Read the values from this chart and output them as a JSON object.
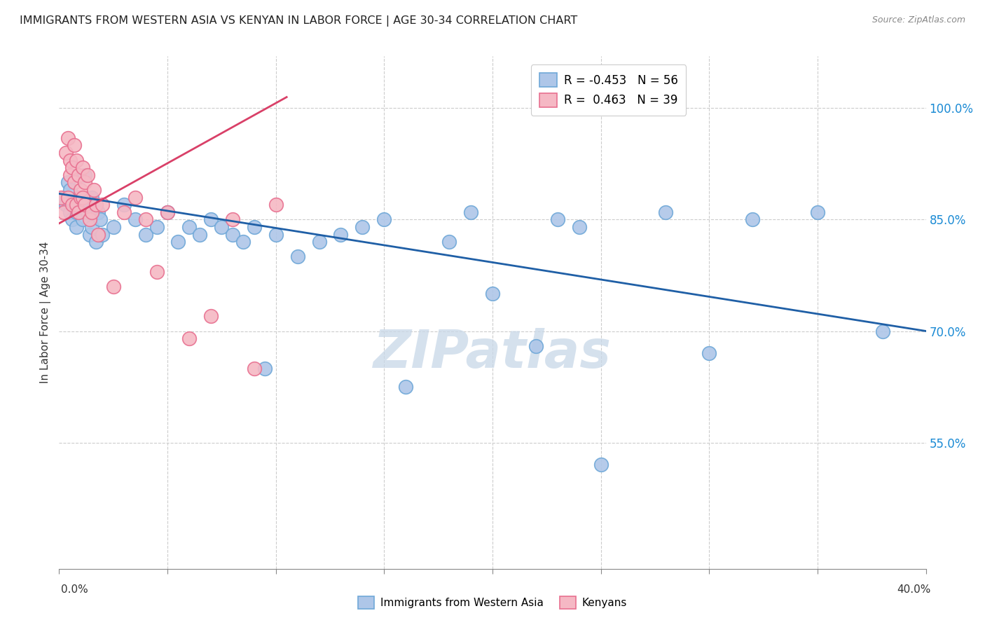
{
  "title": "IMMIGRANTS FROM WESTERN ASIA VS KENYAN IN LABOR FORCE | AGE 30-34 CORRELATION CHART",
  "source": "Source: ZipAtlas.com",
  "ylabel": "In Labor Force | Age 30-34",
  "yticks": [
    100.0,
    85.0,
    70.0,
    55.0
  ],
  "ytick_labels": [
    "100.0%",
    "85.0%",
    "70.0%",
    "55.0%"
  ],
  "ylim": [
    38.0,
    107.0
  ],
  "xlim": [
    0.0,
    40.0
  ],
  "legend_blue_r": "-0.453",
  "legend_blue_n": "56",
  "legend_pink_r": "0.463",
  "legend_pink_n": "39",
  "legend_x1": "Immigrants from Western Asia",
  "legend_x2": "Kenyans",
  "blue_color": "#aec6e8",
  "blue_edge": "#6fa8d8",
  "blue_line": "#1f5fa6",
  "pink_color": "#f5b8c4",
  "pink_edge": "#e87090",
  "pink_line": "#d94068",
  "watermark": "ZIPatlas",
  "watermark_color": "#c8d8e8",
  "blue_dots_x": [
    0.2,
    0.3,
    0.4,
    0.5,
    0.5,
    0.6,
    0.7,
    0.8,
    0.8,
    0.9,
    1.0,
    1.1,
    1.2,
    1.3,
    1.4,
    1.5,
    1.5,
    1.6,
    1.7,
    1.8,
    1.9,
    2.0,
    2.5,
    3.0,
    3.5,
    4.0,
    4.5,
    5.0,
    5.5,
    6.0,
    6.5,
    7.0,
    7.5,
    8.0,
    8.5,
    9.0,
    9.5,
    10.0,
    11.0,
    12.0,
    13.0,
    14.0,
    15.0,
    16.0,
    18.0,
    19.0,
    20.0,
    22.0,
    23.0,
    24.0,
    25.0,
    28.0,
    30.0,
    32.0,
    35.0,
    38.0
  ],
  "blue_dots_y": [
    88.0,
    87.0,
    90.0,
    86.0,
    89.0,
    85.0,
    87.0,
    86.0,
    84.0,
    88.0,
    87.0,
    85.0,
    91.0,
    86.0,
    83.0,
    84.0,
    88.0,
    87.0,
    82.0,
    86.0,
    85.0,
    83.0,
    84.0,
    87.0,
    85.0,
    83.0,
    84.0,
    86.0,
    82.0,
    84.0,
    83.0,
    85.0,
    84.0,
    83.0,
    82.0,
    84.0,
    65.0,
    83.0,
    80.0,
    82.0,
    83.0,
    84.0,
    85.0,
    62.5,
    82.0,
    86.0,
    75.0,
    68.0,
    85.0,
    84.0,
    52.0,
    86.0,
    67.0,
    85.0,
    86.0,
    70.0
  ],
  "pink_dots_x": [
    0.1,
    0.2,
    0.3,
    0.4,
    0.4,
    0.5,
    0.5,
    0.6,
    0.6,
    0.7,
    0.7,
    0.8,
    0.8,
    0.9,
    0.9,
    1.0,
    1.0,
    1.1,
    1.1,
    1.2,
    1.2,
    1.3,
    1.4,
    1.5,
    1.6,
    1.7,
    1.8,
    2.0,
    2.5,
    3.0,
    3.5,
    4.0,
    4.5,
    5.0,
    6.0,
    7.0,
    8.0,
    9.0,
    10.0
  ],
  "pink_dots_y": [
    88.0,
    86.0,
    94.0,
    96.0,
    88.0,
    91.0,
    93.0,
    87.0,
    92.0,
    90.0,
    95.0,
    87.0,
    93.0,
    86.0,
    91.0,
    88.0,
    89.0,
    88.0,
    92.0,
    87.0,
    90.0,
    91.0,
    85.0,
    86.0,
    89.0,
    87.0,
    83.0,
    87.0,
    76.0,
    86.0,
    88.0,
    85.0,
    78.0,
    86.0,
    69.0,
    72.0,
    85.0,
    65.0,
    87.0
  ],
  "blue_line_x0": 0.0,
  "blue_line_y0": 88.5,
  "blue_line_x1": 40.0,
  "blue_line_y1": 70.0,
  "pink_line_x0": 0.0,
  "pink_line_y0": 84.5,
  "pink_line_x1": 10.5,
  "pink_line_y1": 101.5
}
